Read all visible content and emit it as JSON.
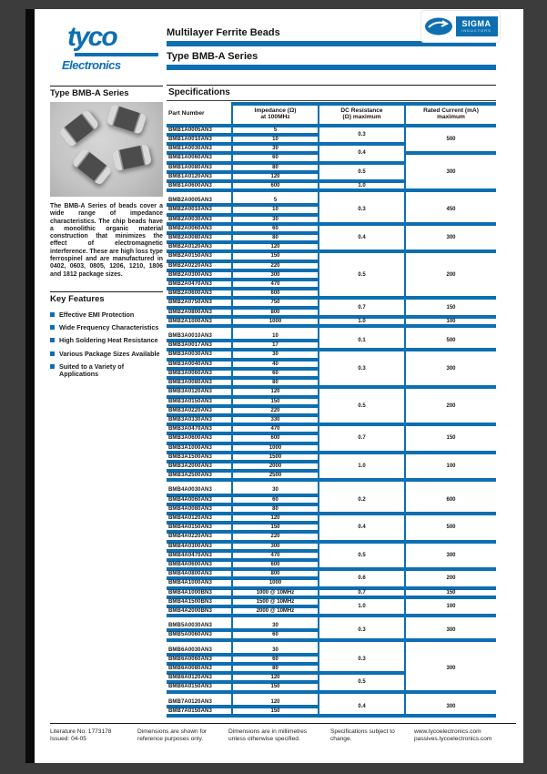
{
  "brand": {
    "logo_word": "tyco",
    "logo_sub": "Electronics"
  },
  "header": {
    "title": "Multilayer Ferrite Beads",
    "subtitle": "Type BMB-A Series"
  },
  "sigma_logo": {
    "name": "SIGMA",
    "sub": "INDUCTORS"
  },
  "colors": {
    "accent_blue": "#0d6fb1"
  },
  "sidebar": {
    "series_title": "Type BMB-A Series",
    "description": "The BMB-A Series of beads cover a wide range of impedance characteristics. The chip beads have a monolithic organic material construction that minimizes the effect of electromagnetic interference. These are high loss type ferrospinel and are manufactured in 0402, 0603, 0805, 1206, 1210, 1806 and 1812 package sizes.",
    "key_features_title": "Key Features",
    "features": [
      "Effective EMI Protection",
      "Wide Frequency Characteristics",
      "High Soldering Heat Resistance",
      "Various Package Sizes Available",
      "Suited to a Variety of Applications"
    ]
  },
  "specifications": {
    "title": "Specifications",
    "table": {
      "headers": {
        "part": "Part Number",
        "impedance": [
          "Impedance (Ω)",
          "at 100MHz"
        ],
        "dc": [
          "DC Resistance",
          "(Ω) maximum"
        ],
        "current": [
          "Rated Current (mA)",
          "maximum"
        ]
      },
      "sections": [
        {
          "size": "0402",
          "rows": [
            {
              "pn": "BMB1A0005AN3",
              "imp": "5"
            },
            {
              "pn": "BMB1A0010AN3",
              "imp": "10"
            },
            {
              "pn": "BMB1A0030AN3",
              "imp": "30"
            },
            {
              "pn": "BMB1A0060AN3",
              "imp": "60"
            },
            {
              "pn": "BMB1A0080AN3",
              "imp": "80"
            },
            {
              "pn": "BMB1A0120AN3",
              "imp": "120"
            },
            {
              "pn": "BMB1A0600AN3",
              "imp": "600"
            }
          ],
          "dc": [
            {
              "value": "0.3",
              "span": 2
            },
            {
              "value": "0.4",
              "span": 2
            },
            {
              "value": "0.5",
              "span": 2
            },
            {
              "value": "1.0",
              "span": 1
            }
          ],
          "cur": [
            {
              "value": "500",
              "span": 3
            },
            {
              "value": "300",
              "span": 4
            }
          ]
        },
        {
          "size": "0603",
          "rows": [
            {
              "pn": "BMB2A0005AN3",
              "imp": "5"
            },
            {
              "pn": "BMB2A0010AN3",
              "imp": "10"
            },
            {
              "pn": "BMB2A0030AN3",
              "imp": "30"
            },
            {
              "pn": "BMB2A0060AN3",
              "imp": "60"
            },
            {
              "pn": "BMB2A0080AN3",
              "imp": "80"
            },
            {
              "pn": "BMB2A0120AN3",
              "imp": "120"
            },
            {
              "pn": "BMB2A0150AN3",
              "imp": "150"
            },
            {
              "pn": "BMB2A0220AN3",
              "imp": "220"
            },
            {
              "pn": "BMB2A0300AN3",
              "imp": "300"
            },
            {
              "pn": "BMB2A0470AN3",
              "imp": "470"
            },
            {
              "pn": "BMB2A0600AN3",
              "imp": "600"
            },
            {
              "pn": "BMB2A0750AN3",
              "imp": "750"
            },
            {
              "pn": "BMB2A0800AN3",
              "imp": "800"
            },
            {
              "pn": "BMB2A1000AN3",
              "imp": "1000"
            }
          ],
          "dc": [
            {
              "value": "0.3",
              "span": 3
            },
            {
              "value": "0.4",
              "span": 3
            },
            {
              "value": "0.5",
              "span": 5
            },
            {
              "value": "0.7",
              "span": 2
            },
            {
              "value": "1.0",
              "span": 1
            }
          ],
          "cur": [
            {
              "value": "450",
              "span": 3
            },
            {
              "value": "300",
              "span": 3
            },
            {
              "value": "200",
              "span": 5
            },
            {
              "value": "150",
              "span": 2
            },
            {
              "value": "100",
              "span": 1
            }
          ]
        },
        {
          "size": "0805",
          "rows": [
            {
              "pn": "BMB3A0010AN3",
              "imp": "10"
            },
            {
              "pn": "BMB3A0017AN3",
              "imp": "17"
            },
            {
              "pn": "BMB3A0030AN3",
              "imp": "30"
            },
            {
              "pn": "BMB3A0040AN3",
              "imp": "40"
            },
            {
              "pn": "BMB3A0060AN3",
              "imp": "60"
            },
            {
              "pn": "BMB3A0080AN3",
              "imp": "80"
            },
            {
              "pn": "BMB3A0120AN3",
              "imp": "120"
            },
            {
              "pn": "BMB3A0150AN3",
              "imp": "150"
            },
            {
              "pn": "BMB3A0220AN3",
              "imp": "220"
            },
            {
              "pn": "BMB3A0330AN3",
              "imp": "330"
            },
            {
              "pn": "BMB3A0470AN3",
              "imp": "470"
            },
            {
              "pn": "BMB3A0600AN3",
              "imp": "600"
            },
            {
              "pn": "BMB3A1000AN3",
              "imp": "1000"
            },
            {
              "pn": "BMB3A1500AN3",
              "imp": "1500"
            },
            {
              "pn": "BMB3A2000AN3",
              "imp": "2000"
            },
            {
              "pn": "BMB3A2500AN3",
              "imp": "2500"
            }
          ],
          "dc": [
            {
              "value": "0.1",
              "span": 2
            },
            {
              "value": "0.3",
              "span": 4
            },
            {
              "value": "0.5",
              "span": 4
            },
            {
              "value": "0.7",
              "span": 3
            },
            {
              "value": "1.0",
              "span": 3
            }
          ],
          "cur": [
            {
              "value": "500",
              "span": 2
            },
            {
              "value": "300",
              "span": 4
            },
            {
              "value": "200",
              "span": 4
            },
            {
              "value": "150",
              "span": 3
            },
            {
              "value": "100",
              "span": 3
            }
          ]
        },
        {
          "size": "1206",
          "rows": [
            {
              "pn": "BMB4A0030AN3",
              "imp": "30"
            },
            {
              "pn": "BMB4A0060AN3",
              "imp": "60"
            },
            {
              "pn": "BMB4A0080AN3",
              "imp": "80"
            },
            {
              "pn": "BMB4A0120AN3",
              "imp": "120"
            },
            {
              "pn": "BMB4A0150AN3",
              "imp": "150"
            },
            {
              "pn": "BMB4A0220AN3",
              "imp": "220"
            },
            {
              "pn": "BMB4A0300AN3",
              "imp": "300"
            },
            {
              "pn": "BMB4A0470AN3",
              "imp": "470"
            },
            {
              "pn": "BMB4A0600AN3",
              "imp": "600"
            },
            {
              "pn": "BMB4A0800AN3",
              "imp": "800"
            },
            {
              "pn": "BMB4A1000AN3",
              "imp": "1000"
            },
            {
              "pn": "BMB4A1000BN3",
              "imp": "1000 @ 10MHz"
            },
            {
              "pn": "BMB4A1500BN3",
              "imp": "1500 @ 10MHz"
            },
            {
              "pn": "BMB4A2000BN3",
              "imp": "2000 @ 10MHz"
            }
          ],
          "dc": [
            {
              "value": "0.2",
              "span": 3
            },
            {
              "value": "0.4",
              "span": 3
            },
            {
              "value": "0.5",
              "span": 3
            },
            {
              "value": "0.6",
              "span": 2
            },
            {
              "value": "0.7",
              "span": 1
            },
            {
              "value": "1.0",
              "span": 2
            }
          ],
          "cur": [
            {
              "value": "600",
              "span": 3
            },
            {
              "value": "500",
              "span": 3
            },
            {
              "value": "300",
              "span": 3
            },
            {
              "value": "200",
              "span": 2
            },
            {
              "value": "150",
              "span": 1
            },
            {
              "value": "100",
              "span": 2
            }
          ]
        },
        {
          "size": "1210",
          "rows": [
            {
              "pn": "BMB5A0030AN3",
              "imp": "30"
            },
            {
              "pn": "BMB5A0060AN3",
              "imp": "60"
            }
          ],
          "dc": [
            {
              "value": "0.3",
              "span": 2
            }
          ],
          "cur": [
            {
              "value": "300",
              "span": 2
            }
          ]
        },
        {
          "size": "1806",
          "rows": [
            {
              "pn": "BMB6A0030AN3",
              "imp": "30"
            },
            {
              "pn": "BMB6A0060AN3",
              "imp": "60"
            },
            {
              "pn": "BMB6A0080AN3",
              "imp": "80"
            },
            {
              "pn": "BMB6A0120AN3",
              "imp": "120"
            },
            {
              "pn": "BMB6A0150AN3",
              "imp": "150"
            }
          ],
          "dc": [
            {
              "value": "0.3",
              "span": 3
            },
            {
              "value": "0.5",
              "span": 2
            }
          ],
          "cur": [
            {
              "value": "300",
              "span": 5
            }
          ]
        },
        {
          "size": "1812",
          "rows": [
            {
              "pn": "BMB7A0120AN3",
              "imp": "120"
            },
            {
              "pn": "BMB7A0150AN3",
              "imp": "150"
            }
          ],
          "dc": [
            {
              "value": "0.4",
              "span": 2
            }
          ],
          "cur": [
            {
              "value": "300",
              "span": 2
            }
          ]
        }
      ]
    }
  },
  "footer": {
    "items": [
      [
        "Literature No. 1773178",
        "Issued: 04-05"
      ],
      [
        "Dimensions are shown for",
        "reference purposes only."
      ],
      [
        "Dimensions are in millimetres",
        "unless otherwise specified."
      ],
      [
        "Specifications subject to",
        "change."
      ],
      [
        "www.tycoelectronics.com",
        "passives.tycoelectronics.com"
      ]
    ]
  }
}
